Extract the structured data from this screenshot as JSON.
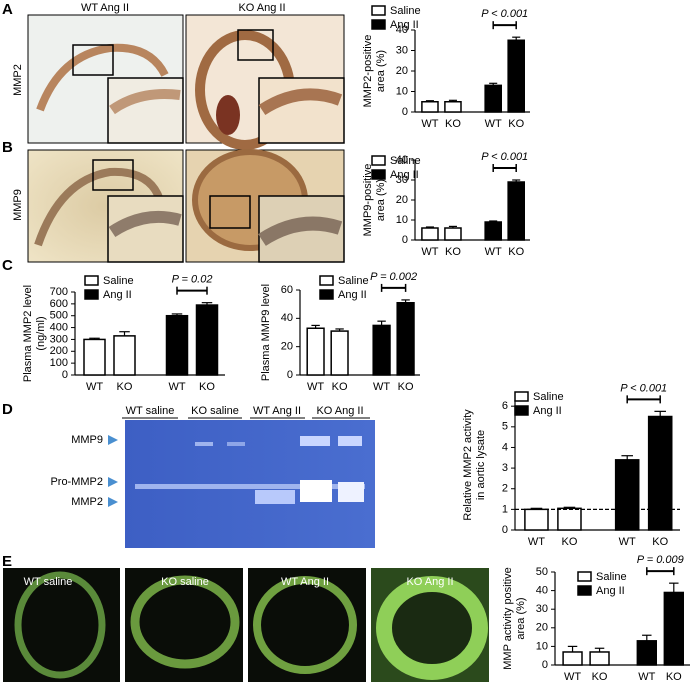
{
  "panel_letters": [
    "A",
    "B",
    "C",
    "D",
    "E"
  ],
  "histology": {
    "columns": [
      "WT Ang II",
      "KO Ang II"
    ],
    "rows": [
      "MMP2",
      "MMP9"
    ]
  },
  "gel": {
    "lanes": [
      "WT saline",
      "KO saline",
      "WT Ang II",
      "KO Ang II"
    ],
    "bands": [
      "MMP9",
      "Pro-MMP2",
      "MMP2"
    ]
  },
  "fluorescence": {
    "labels": [
      "WT saline",
      "KO saline",
      "WT Ang II",
      "KO Ang II"
    ]
  },
  "chart_data": [
    {
      "type": "bar",
      "ylabel": [
        "MMP2-positive",
        "area (%)"
      ],
      "categories": [
        "WT",
        "KO",
        "WT",
        "KO"
      ],
      "series": [
        {
          "name": "Saline",
          "color": "#ffffff",
          "values": [
            5,
            5,
            null,
            null
          ],
          "errors": [
            0.5,
            0.7,
            null,
            null
          ]
        },
        {
          "name": "Ang II",
          "color": "#000000",
          "values": [
            null,
            null,
            13,
            35
          ],
          "errors": [
            null,
            null,
            1,
            1.5
          ]
        }
      ],
      "ylim": [
        0,
        40
      ],
      "yticks": [
        0,
        10,
        20,
        30,
        40
      ],
      "annotation": "P < 0.001"
    },
    {
      "type": "bar",
      "ylabel": [
        "MMP9-positive",
        "area (%)"
      ],
      "categories": [
        "WT",
        "KO",
        "WT",
        "KO"
      ],
      "series": [
        {
          "name": "Saline",
          "color": "#ffffff",
          "values": [
            6,
            6,
            null,
            null
          ],
          "errors": [
            0.5,
            0.8,
            null,
            null
          ]
        },
        {
          "name": "Ang II",
          "color": "#000000",
          "values": [
            null,
            null,
            9,
            29
          ],
          "errors": [
            null,
            null,
            0.5,
            1
          ]
        }
      ],
      "ylim": [
        0,
        40
      ],
      "yticks": [
        0,
        10,
        20,
        30,
        40
      ],
      "annotation": "P < 0.001"
    },
    {
      "type": "bar",
      "ylabel": [
        "Plasma MMP2 level",
        "(ng/ml)"
      ],
      "categories": [
        "WT",
        "KO",
        "WT",
        "KO"
      ],
      "series": [
        {
          "name": "Saline",
          "color": "#ffffff",
          "values": [
            300,
            330,
            null,
            null
          ],
          "errors": [
            10,
            35,
            null,
            null
          ]
        },
        {
          "name": "Ang II",
          "color": "#000000",
          "values": [
            null,
            null,
            500,
            590
          ],
          "errors": [
            null,
            null,
            15,
            20
          ]
        }
      ],
      "ylim": [
        0,
        700
      ],
      "yticks": [
        0,
        100,
        200,
        300,
        400,
        500,
        600,
        700
      ],
      "annotation": "P = 0.02"
    },
    {
      "type": "bar",
      "ylabel": [
        "Plasma MMP9 level"
      ],
      "categories": [
        "WT",
        "KO",
        "WT",
        "KO"
      ],
      "series": [
        {
          "name": "Saline",
          "color": "#ffffff",
          "values": [
            33,
            31,
            null,
            null
          ],
          "errors": [
            2,
            1.5,
            null,
            null
          ]
        },
        {
          "name": "Ang II",
          "color": "#000000",
          "values": [
            null,
            null,
            35,
            51
          ],
          "errors": [
            null,
            null,
            3,
            2
          ]
        }
      ],
      "ylim": [
        0,
        60
      ],
      "yticks": [
        0,
        20,
        40,
        60
      ],
      "annotation": "P = 0.002"
    },
    {
      "type": "bar",
      "ylabel": [
        "Relative MMP2 activity",
        "in aortic lysate"
      ],
      "categories": [
        "WT",
        "KO",
        "WT",
        "KO"
      ],
      "series": [
        {
          "name": "Saline",
          "color": "#ffffff",
          "values": [
            1.0,
            1.05,
            null,
            null
          ],
          "errors": [
            0.05,
            0.05,
            null,
            null
          ]
        },
        {
          "name": "Ang II",
          "color": "#000000",
          "values": [
            null,
            null,
            3.4,
            5.5
          ],
          "errors": [
            null,
            null,
            0.2,
            0.25
          ]
        }
      ],
      "ylim": [
        0,
        6.3
      ],
      "yticks": [
        0,
        1,
        2,
        3,
        4,
        5,
        6
      ],
      "hline": 1,
      "annotation": "P < 0.001"
    },
    {
      "type": "bar",
      "ylabel": [
        "MMP activity positive",
        "area (%)"
      ],
      "categories": [
        "WT",
        "KO",
        "WT",
        "KO"
      ],
      "series": [
        {
          "name": "Saline",
          "color": "#ffffff",
          "values": [
            7,
            7,
            null,
            null
          ],
          "errors": [
            3,
            2,
            null,
            null
          ]
        },
        {
          "name": "Ang II",
          "color": "#000000",
          "values": [
            null,
            null,
            13,
            39
          ],
          "errors": [
            null,
            null,
            3,
            5
          ]
        }
      ],
      "ylim": [
        0,
        50
      ],
      "yticks": [
        0,
        10,
        20,
        30,
        40,
        50
      ],
      "annotation": "P = 0.009"
    }
  ]
}
